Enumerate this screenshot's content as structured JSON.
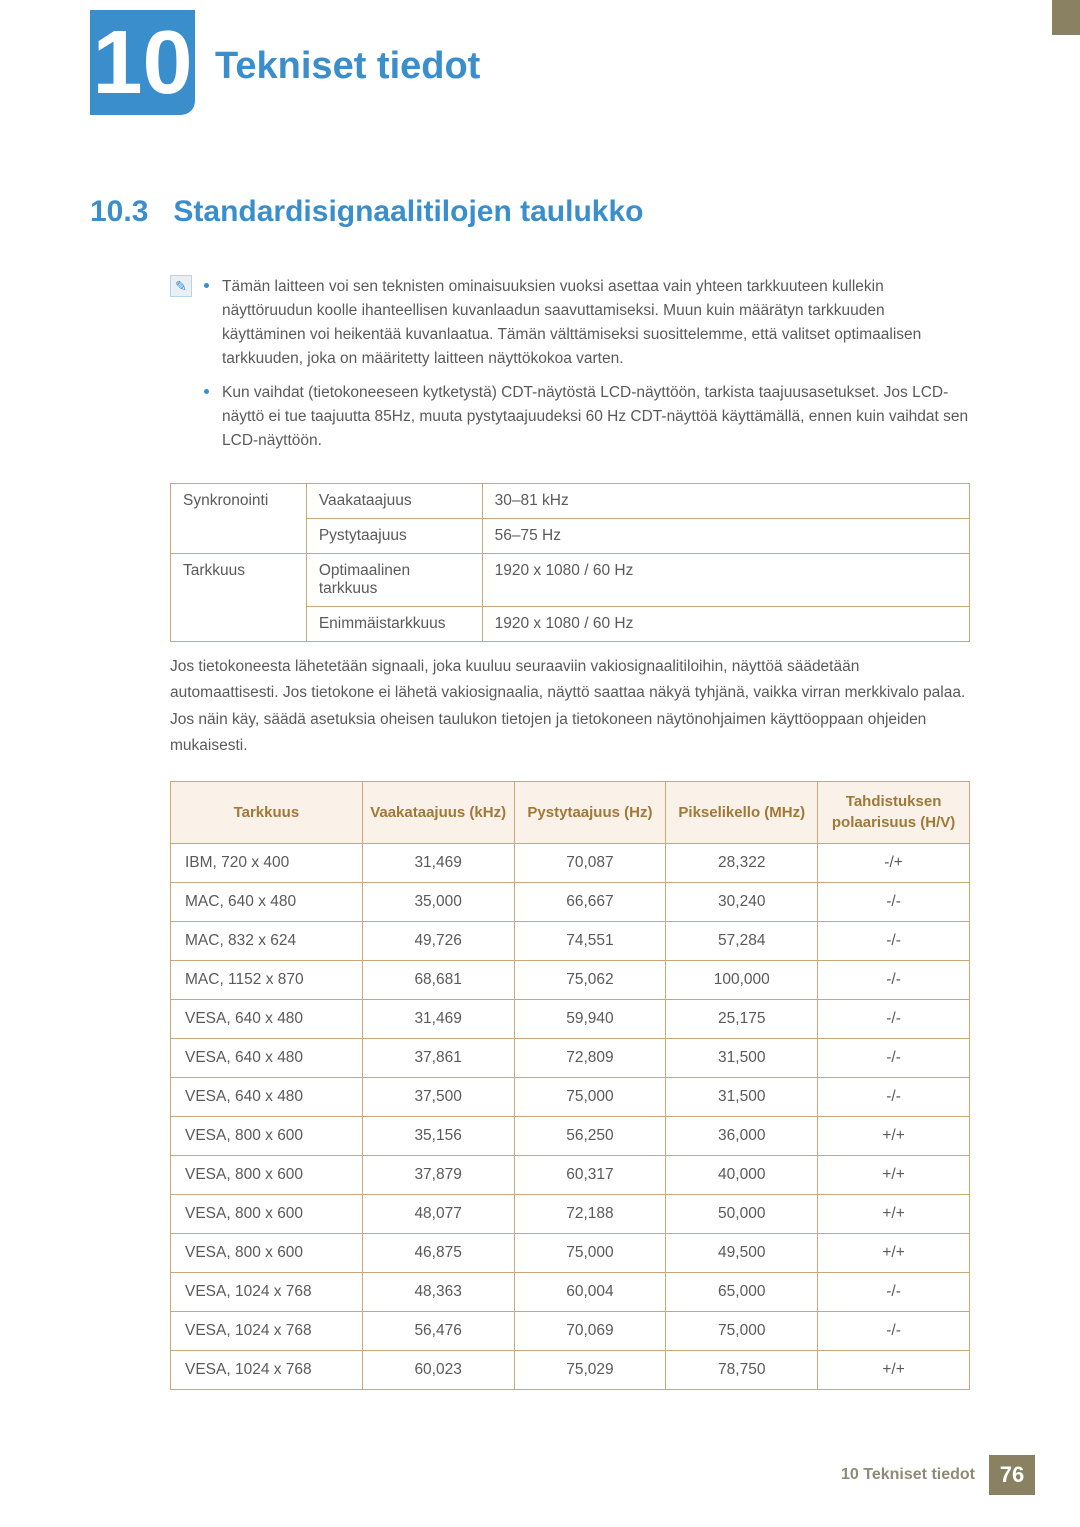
{
  "chapter": {
    "number": "10",
    "title": "Tekniset tiedot"
  },
  "section": {
    "number": "10.3",
    "title": "Standardisignaalitilojen taulukko"
  },
  "notes": {
    "b1": "Tämän laitteen voi sen teknisten ominaisuuksien vuoksi asettaa vain yhteen tarkkuuteen kullekin näyttöruudun koolle ihanteellisen kuvanlaadun saavuttamiseksi. Muun kuin määrätyn tarkkuuden käyttäminen voi heikentää kuvanlaatua. Tämän välttämiseksi suosittelemme, että valitset optimaalisen tarkkuuden, joka on määritetty laitteen näyttökokoa varten.",
    "b2": "Kun vaihdat (tietokoneeseen kytketystä) CDT-näytöstä LCD-näyttöön, tarkista taajuusasetukset. Jos LCD-näyttö ei tue taajuutta 85Hz, muuta pystytaajuudeksi 60 Hz CDT-näyttöä käyttämällä, ennen kuin vaihdat sen LCD-näyttöön."
  },
  "sync": {
    "r1c1": "Synkronointi",
    "r1c2": "Vaakataajuus",
    "r1c3": "30–81 kHz",
    "r2c2": "Pystytaajuus",
    "r2c3": "56–75 Hz",
    "r3c1": "Tarkkuus",
    "r3c2": "Optimaalinen tarkkuus",
    "r3c3": "1920 x 1080 / 60 Hz",
    "r4c2": "Enimmäistarkkuus",
    "r4c3": "1920 x 1080 / 60 Hz"
  },
  "para": "Jos tietokoneesta lähetetään signaali, joka kuuluu seuraaviin vakiosignaalitiloihin, näyttöä säädetään automaattisesti. Jos tietokone ei lähetä vakiosignaalia, näyttö saattaa näkyä tyhjänä, vaikka virran merkkivalo palaa. Jos näin käy, säädä asetuksia oheisen taulukon tietojen ja tietokoneen näytönohjaimen käyttöoppaan ohjeiden mukaisesti.",
  "mode_headers": {
    "h1": "Tarkkuus",
    "h2": "Vaakataajuus (kHz)",
    "h3": "Pystytaajuus (Hz)",
    "h4": "Pikselikello (MHz)",
    "h5": "Tahdistuksen polaarisuus (H/V)"
  },
  "modes": [
    {
      "res": "IBM, 720 x 400",
      "h": "31,469",
      "v": "70,087",
      "p": "28,322",
      "pol": "-/+"
    },
    {
      "res": "MAC, 640 x 480",
      "h": "35,000",
      "v": "66,667",
      "p": "30,240",
      "pol": "-/-"
    },
    {
      "res": "MAC, 832 x 624",
      "h": "49,726",
      "v": "74,551",
      "p": "57,284",
      "pol": "-/-"
    },
    {
      "res": "MAC, 1152 x 870",
      "h": "68,681",
      "v": "75,062",
      "p": "100,000",
      "pol": "-/-"
    },
    {
      "res": "VESA, 640 x 480",
      "h": "31,469",
      "v": "59,940",
      "p": "25,175",
      "pol": "-/-"
    },
    {
      "res": "VESA, 640 x 480",
      "h": "37,861",
      "v": "72,809",
      "p": "31,500",
      "pol": "-/-"
    },
    {
      "res": "VESA, 640 x 480",
      "h": "37,500",
      "v": "75,000",
      "p": "31,500",
      "pol": "-/-"
    },
    {
      "res": "VESA, 800 x 600",
      "h": "35,156",
      "v": "56,250",
      "p": "36,000",
      "pol": "+/+"
    },
    {
      "res": "VESA, 800 x 600",
      "h": "37,879",
      "v": "60,317",
      "p": "40,000",
      "pol": "+/+"
    },
    {
      "res": "VESA, 800 x 600",
      "h": "48,077",
      "v": "72,188",
      "p": "50,000",
      "pol": "+/+"
    },
    {
      "res": "VESA, 800 x 600",
      "h": "46,875",
      "v": "75,000",
      "p": "49,500",
      "pol": "+/+"
    },
    {
      "res": "VESA, 1024 x 768",
      "h": "48,363",
      "v": "60,004",
      "p": "65,000",
      "pol": "-/-"
    },
    {
      "res": "VESA, 1024 x 768",
      "h": "56,476",
      "v": "70,069",
      "p": "75,000",
      "pol": "-/-"
    },
    {
      "res": "VESA, 1024 x 768",
      "h": "60,023",
      "v": "75,029",
      "p": "78,750",
      "pol": "+/+"
    }
  ],
  "footer": {
    "label": "10 Tekniset tiedot",
    "page": "76"
  },
  "colors": {
    "accent_blue": "#3a8ecb",
    "accent_olive": "#8a8163",
    "table_border": "#c8a878",
    "header_bg": "#faf2e8",
    "header_text": "#a07838",
    "body_text": "#5a5a5a"
  }
}
